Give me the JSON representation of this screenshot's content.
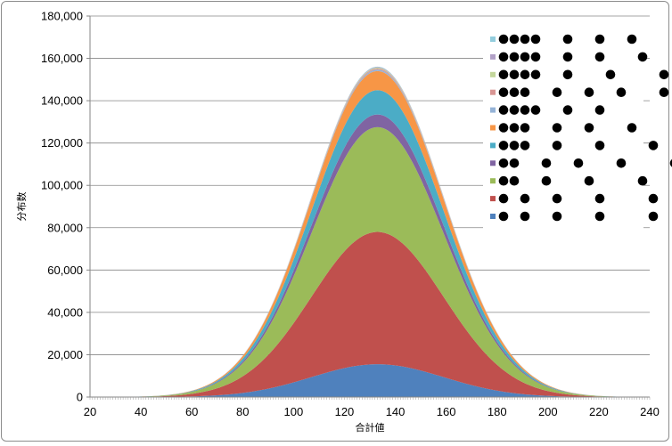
{
  "chart_data": {
    "type": "area",
    "stacked": true,
    "title": "",
    "xlabel": "合計値",
    "ylabel": "分布数",
    "xlim": [
      20,
      240
    ],
    "ylim": [
      0,
      180000
    ],
    "x_ticks": [
      20,
      40,
      60,
      80,
      100,
      120,
      140,
      160,
      180,
      200,
      220,
      240
    ],
    "y_ticks": [
      0,
      20000,
      40000,
      60000,
      80000,
      100000,
      120000,
      140000,
      160000,
      180000
    ],
    "y_tick_labels": [
      "0",
      "20,000",
      "40,000",
      "60,000",
      "80,000",
      "100,000",
      "120,000",
      "140,000",
      "160,000",
      "180,000"
    ],
    "x_tick_labels": [
      "20",
      "40",
      "60",
      "80",
      "100",
      "120",
      "140",
      "160",
      "180",
      "200",
      "220",
      "240"
    ],
    "grid": "horizontal",
    "legend_position": "top-right",
    "peak_x": 133,
    "curve_sigma": 26,
    "legend_note": "Each legend entry is a row of black dots (a dot pattern), not text.",
    "series": [
      {
        "color": "#4f81bd",
        "peak_value": 15500,
        "dot_pattern": [
          0,
          1,
          2,
          3,
          4,
          5,
          6
        ]
      },
      {
        "color": "#c0504d",
        "peak_value": 62500,
        "dot_pattern": [
          0,
          1,
          2,
          3,
          4,
          5,
          6
        ]
      },
      {
        "color": "#9bbb59",
        "peak_value": 49500,
        "dot_pattern": [
          0,
          0,
          2,
          3,
          4,
          5
        ]
      },
      {
        "color": "#8064a2",
        "peak_value": 6000,
        "dot_pattern": [
          0,
          0,
          2,
          2,
          3,
          4
        ]
      },
      {
        "color": "#4bacc6",
        "peak_value": 11500,
        "dot_pattern": [
          0,
          0,
          0,
          2,
          3,
          4,
          5
        ]
      },
      {
        "color": "#f79646",
        "peak_value": 9000,
        "dot_pattern": [
          0,
          0,
          0,
          2,
          2,
          3,
          4
        ]
      },
      {
        "color": "#95b3d7",
        "peak_value": 700,
        "dot_pattern": [
          0,
          0,
          0,
          0,
          2,
          2
        ]
      },
      {
        "color": "#d99694",
        "peak_value": 500,
        "dot_pattern": [
          0,
          0,
          0,
          2,
          2,
          2,
          3
        ]
      },
      {
        "color": "#c3d69b",
        "peak_value": 400,
        "dot_pattern": [
          0,
          0,
          0,
          0,
          2,
          3,
          4
        ]
      },
      {
        "color": "#b2a1c7",
        "peak_value": 300,
        "dot_pattern": [
          0,
          0,
          0,
          0,
          2,
          2,
          3
        ]
      },
      {
        "color": "#93cddd",
        "peak_value": 200,
        "dot_pattern": [
          0,
          0,
          0,
          0,
          2,
          2,
          2
        ]
      }
    ]
  }
}
